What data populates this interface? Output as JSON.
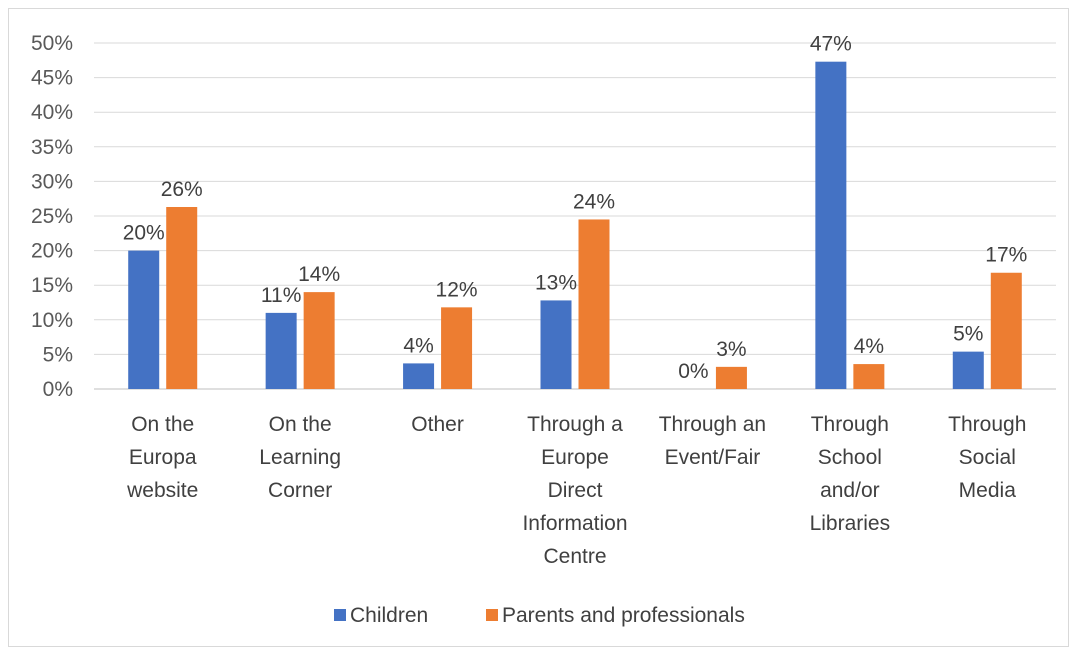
{
  "chart_data": {
    "type": "bar",
    "title": "",
    "xlabel": "",
    "ylabel": "",
    "ylim": [
      0,
      50
    ],
    "y_ticks": [
      "0%",
      "5%",
      "10%",
      "15%",
      "20%",
      "25%",
      "30%",
      "35%",
      "40%",
      "45%",
      "50%"
    ],
    "grid": true,
    "legend_position": "bottom",
    "categories": [
      [
        "On the",
        "Europa",
        "website"
      ],
      [
        "On the",
        "Learning",
        "Corner"
      ],
      [
        "Other"
      ],
      [
        "Through a",
        "Europe",
        "Direct",
        "Information",
        "Centre"
      ],
      [
        "Through an",
        "Event/Fair"
      ],
      [
        "Through",
        "School",
        "and/or",
        "Libraries"
      ],
      [
        "Through",
        "Social",
        "Media"
      ]
    ],
    "series": [
      {
        "name": "Children",
        "color": "#4472c4",
        "values": [
          20,
          11,
          3.7,
          12.8,
          0,
          47.3,
          5.4
        ],
        "labels": [
          "20%",
          "11%",
          "4%",
          "13%",
          "0%",
          "47%",
          "5%"
        ]
      },
      {
        "name": "Parents and professionals",
        "color": "#ed7d31",
        "values": [
          26.3,
          14,
          11.8,
          24.5,
          3.2,
          3.6,
          16.8
        ],
        "labels": [
          "26%",
          "14%",
          "12%",
          "24%",
          "3%",
          "4%",
          "17%"
        ]
      }
    ]
  }
}
